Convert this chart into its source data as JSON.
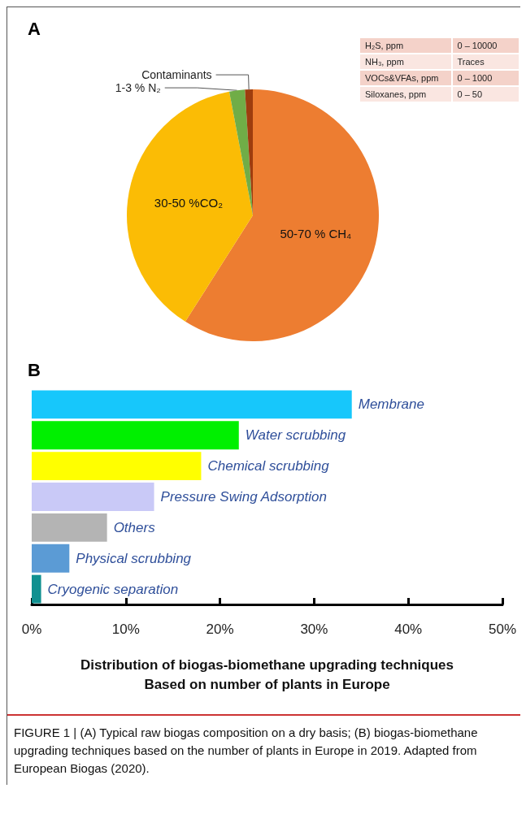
{
  "chart_data": [
    {
      "type": "pie",
      "title": "A",
      "categories": [
        "50-70 % CH₄",
        "30-50 %CO₂",
        "1-3 % N₂",
        "Contaminants"
      ],
      "values": [
        59,
        38,
        2,
        1
      ],
      "colors": [
        "#ed7d31",
        "#fbbc05",
        "#70ad47",
        "#9e3d0e"
      ],
      "legend": false
    },
    {
      "type": "other",
      "annotations": [
        "H₂S, ppm",
        "0 – 10000",
        "NH₃, ppm",
        "Traces",
        "VOCs&VFAs, ppm",
        "0 – 1000",
        "Siloxanes, ppm",
        "0 – 50"
      ]
    },
    {
      "type": "bar",
      "orientation": "horizontal",
      "title": "B",
      "categories": [
        "Membrane",
        "Water scrubbing",
        "Chemical scrubbing",
        "Pressure Swing Adsorption",
        "Others",
        "Physical scrubbing",
        "Cryogenic separation"
      ],
      "values": [
        34,
        22,
        18,
        13,
        8,
        4,
        1
      ],
      "colors": [
        "#17c7fb",
        "#00f000",
        "#ffff00",
        "#c9c9f7",
        "#b4b4b4",
        "#5b9bd5",
        "#109090"
      ],
      "xlim": [
        0,
        50
      ],
      "xticks": [
        {
          "value": 0,
          "label": "0%"
        },
        {
          "value": 10,
          "label": "10%"
        },
        {
          "value": 20,
          "label": "20%"
        },
        {
          "value": 30,
          "label": "30%"
        },
        {
          "value": 40,
          "label": "40%"
        },
        {
          "value": 50,
          "label": "50%"
        }
      ],
      "xlabel": "Distribution of biogas-biomethane upgrading techniques\nBased on number of plants in Europe",
      "grid": false,
      "legend": false,
      "annotations": [
        "FIGURE 1 | (A) Typical raw biogas composition on a dry basis; (B) biogas-biomethane upgrading techniques based on the number of plants in Europe in 2019. Adapted from European Biogas (2020)."
      ]
    }
  ]
}
